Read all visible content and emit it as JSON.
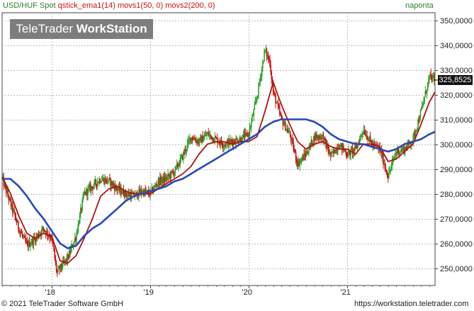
{
  "header": {
    "series_text": "USD/HUF Spot",
    "indicators_text": "qstick_ema1(14) movs1(50, 0) movs2(200, 0)",
    "period": "naponta"
  },
  "watermark": {
    "brand": "TeleTrader",
    "product": "WorkStation"
  },
  "footer": {
    "copyright": "© 2021 TeleTrader Software GmbH",
    "url": "https://workstation.teletrader.com"
  },
  "last_price_label": "325,8525",
  "colors": {
    "candle_up": "#2ea32e",
    "candle_down": "#cc1111",
    "ma50": "#b01010",
    "ma200": "#2a49b8",
    "last_price_bg": "#111111"
  },
  "chart_data": {
    "type": "line",
    "title": "",
    "xlabel": "",
    "ylabel": "",
    "x_ticks": [
      "'18",
      "'19",
      "'20",
      "'21"
    ],
    "y_ticks": [
      "250,0000",
      "260,0000",
      "270,0000",
      "280,0000",
      "290,0000",
      "300,0000",
      "310,0000",
      "320,0000",
      "330,0000",
      "340,0000",
      "350,0000"
    ],
    "ylim": [
      243,
      353
    ],
    "xlim": [
      "2017-07-01",
      "2021-11-22"
    ],
    "grid": true,
    "series": [
      {
        "name": "USD/HUF Spot",
        "kind": "price",
        "x": [
          "2017-07-01",
          "2017-08-01",
          "2017-09-01",
          "2017-10-01",
          "2017-11-01",
          "2017-12-01",
          "2018-01-01",
          "2018-01-20",
          "2018-02-01",
          "2018-03-01",
          "2018-04-01",
          "2018-05-01",
          "2018-06-01",
          "2018-07-01",
          "2018-08-01",
          "2018-09-01",
          "2018-10-01",
          "2018-11-01",
          "2018-12-01",
          "2019-01-01",
          "2019-02-01",
          "2019-03-01",
          "2019-04-01",
          "2019-05-01",
          "2019-06-01",
          "2019-07-01",
          "2019-08-01",
          "2019-09-01",
          "2019-10-01",
          "2019-11-01",
          "2019-12-01",
          "2020-01-01",
          "2020-02-01",
          "2020-03-01",
          "2020-03-20",
          "2020-04-01",
          "2020-05-01",
          "2020-06-01",
          "2020-07-01",
          "2020-08-01",
          "2020-09-01",
          "2020-10-01",
          "2020-11-01",
          "2020-12-01",
          "2021-01-01",
          "2021-02-01",
          "2021-03-01",
          "2021-04-01",
          "2021-05-01",
          "2021-06-01",
          "2021-07-01",
          "2021-08-01",
          "2021-09-01",
          "2021-10-01",
          "2021-11-01",
          "2021-11-22"
        ],
        "values": [
          286,
          276,
          266,
          259,
          262,
          266,
          262,
          248,
          250,
          254,
          263,
          280,
          283,
          286,
          285,
          282,
          280,
          279,
          281,
          280,
          285,
          286,
          289,
          295,
          303,
          301,
          304,
          302,
          300,
          301,
          302,
          304,
          319,
          338,
          333,
          321,
          310,
          304,
          292,
          296,
          303,
          303,
          295,
          300,
          296,
          298,
          306,
          300,
          298,
          287,
          297,
          298,
          302,
          313,
          327,
          326
        ]
      },
      {
        "name": "movs1(50, 0)",
        "kind": "moving-average",
        "x": [
          "2017-07-01",
          "2017-08-01",
          "2017-09-01",
          "2017-10-01",
          "2017-11-01",
          "2017-12-01",
          "2018-01-01",
          "2018-02-01",
          "2018-03-01",
          "2018-04-01",
          "2018-05-01",
          "2018-06-01",
          "2018-07-01",
          "2018-08-01",
          "2018-09-01",
          "2018-10-01",
          "2018-11-01",
          "2018-12-01",
          "2019-01-01",
          "2019-02-01",
          "2019-03-01",
          "2019-04-01",
          "2019-05-01",
          "2019-06-01",
          "2019-07-01",
          "2019-08-01",
          "2019-09-01",
          "2019-10-01",
          "2019-11-01",
          "2019-12-01",
          "2020-01-01",
          "2020-02-01",
          "2020-03-01",
          "2020-04-01",
          "2020-05-01",
          "2020-06-01",
          "2020-07-01",
          "2020-08-01",
          "2020-09-01",
          "2020-10-01",
          "2020-11-01",
          "2020-12-01",
          "2021-01-01",
          "2021-02-01",
          "2021-03-01",
          "2021-04-01",
          "2021-05-01",
          "2021-06-01",
          "2021-07-01",
          "2021-08-01",
          "2021-09-01",
          "2021-10-01",
          "2021-11-01",
          "2021-11-22"
        ],
        "values": [
          287,
          280,
          271,
          264,
          262,
          264,
          263,
          253,
          252,
          255,
          262,
          270,
          279,
          282,
          283,
          281,
          280,
          280,
          280,
          282,
          284,
          286,
          288,
          291,
          296,
          300,
          301,
          301,
          300,
          301,
          301,
          303,
          313,
          325,
          316,
          308,
          301,
          298,
          300,
          301,
          299,
          298,
          298,
          296,
          300,
          300,
          299,
          293,
          294,
          297,
          300,
          308,
          317,
          321
        ]
      },
      {
        "name": "movs2(200, 0)",
        "kind": "moving-average",
        "x": [
          "2017-07-01",
          "2017-08-01",
          "2017-09-01",
          "2017-10-01",
          "2017-11-01",
          "2017-12-01",
          "2018-01-01",
          "2018-02-01",
          "2018-03-01",
          "2018-04-01",
          "2018-05-01",
          "2018-06-01",
          "2018-07-01",
          "2018-08-01",
          "2018-09-01",
          "2018-10-01",
          "2018-11-01",
          "2018-12-01",
          "2019-01-01",
          "2019-02-01",
          "2019-03-01",
          "2019-04-01",
          "2019-05-01",
          "2019-06-01",
          "2019-07-01",
          "2019-08-01",
          "2019-09-01",
          "2019-10-01",
          "2019-11-01",
          "2019-12-01",
          "2020-01-01",
          "2020-02-01",
          "2020-03-01",
          "2020-04-01",
          "2020-05-01",
          "2020-06-01",
          "2020-07-01",
          "2020-08-01",
          "2020-09-01",
          "2020-10-01",
          "2020-11-01",
          "2020-12-01",
          "2021-01-01",
          "2021-02-01",
          "2021-03-01",
          "2021-04-01",
          "2021-05-01",
          "2021-06-01",
          "2021-07-01",
          "2021-08-01",
          "2021-09-01",
          "2021-10-01",
          "2021-11-01",
          "2021-11-22"
        ],
        "values": [
          286,
          286,
          283,
          279,
          274,
          270,
          265,
          260,
          258,
          259,
          263,
          266,
          268,
          271,
          274,
          277,
          279,
          280,
          281,
          282,
          283,
          285,
          286,
          288,
          290,
          292,
          294,
          296,
          298,
          300,
          302,
          304,
          307,
          309,
          310,
          310,
          310,
          310,
          309,
          307,
          304,
          302,
          301,
          300,
          300,
          299,
          298,
          297,
          298,
          300,
          301,
          302,
          304,
          305
        ]
      }
    ]
  }
}
